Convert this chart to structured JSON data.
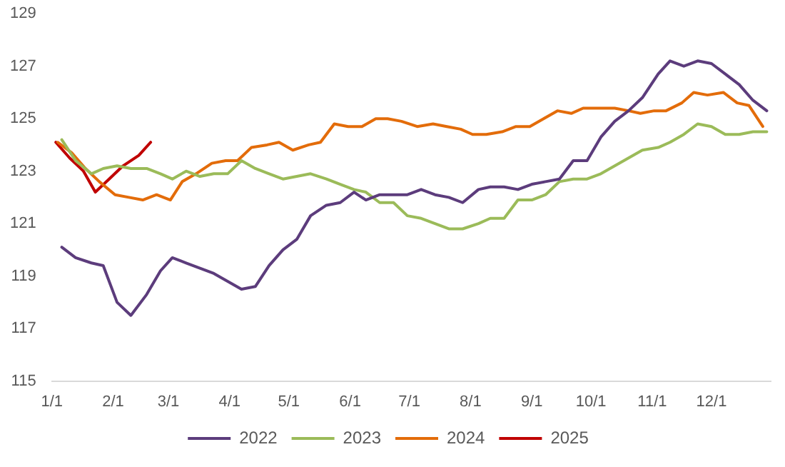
{
  "chart_data": {
    "type": "line",
    "xlim": [
      "--01-01",
      "--12-31"
    ],
    "xticks": [
      {
        "value": "--01-01",
        "label": "1/1"
      },
      {
        "value": "--02-01",
        "label": "2/1"
      },
      {
        "value": "--03-01",
        "label": "3/1"
      },
      {
        "value": "--04-01",
        "label": "4/1"
      },
      {
        "value": "--05-01",
        "label": "5/1"
      },
      {
        "value": "--06-01",
        "label": "6/1"
      },
      {
        "value": "--07-01",
        "label": "7/1"
      },
      {
        "value": "--08-01",
        "label": "8/1"
      },
      {
        "value": "--09-01",
        "label": "9/1"
      },
      {
        "value": "--10-01",
        "label": "10/1"
      },
      {
        "value": "--11-01",
        "label": "11/1"
      },
      {
        "value": "--12-01",
        "label": "12/1"
      }
    ],
    "ylim": [
      115,
      129
    ],
    "yticks": [
      115,
      117,
      119,
      121,
      123,
      125,
      127,
      129
    ],
    "grid": false,
    "legend": "bottom",
    "marker": "none",
    "line_style": "solid",
    "x": [
      "--01-06",
      "--01-13",
      "--01-21",
      "--01-27",
      "--02-03",
      "--02-10",
      "--02-18",
      "--02-25",
      "--03-03",
      "--03-10",
      "--03-17",
      "--03-24",
      "--03-31",
      "--04-07",
      "--04-14",
      "--04-21",
      "--04-28",
      "--05-05",
      "--05-12",
      "--05-20",
      "--05-27",
      "--06-03",
      "--06-09",
      "--06-16",
      "--06-23",
      "--06-30",
      "--07-07",
      "--07-14",
      "--07-21",
      "--07-28",
      "--08-05",
      "--08-11",
      "--08-18",
      "--08-25",
      "--09-01",
      "--09-08",
      "--09-15",
      "--09-22",
      "--09-29",
      "--10-06",
      "--10-13",
      "--10-20",
      "--10-27",
      "--11-04",
      "--11-10",
      "--11-17",
      "--11-24",
      "--12-01",
      "--12-08",
      "--12-15",
      "--12-22",
      "--12-29"
    ],
    "series": [
      {
        "name": "2022",
        "color": "#5c3c7c",
        "values": [
          120.1,
          119.7,
          119.5,
          119.4,
          118.0,
          117.5,
          118.3,
          119.2,
          119.7,
          119.5,
          119.3,
          119.1,
          118.8,
          118.5,
          118.6,
          119.4,
          120.0,
          120.4,
          121.3,
          121.7,
          121.8,
          122.2,
          121.9,
          122.1,
          122.1,
          122.1,
          122.3,
          122.1,
          122.0,
          121.8,
          122.3,
          122.4,
          122.4,
          122.3,
          122.5,
          122.6,
          122.7,
          123.4,
          123.4,
          124.3,
          124.9,
          125.3,
          125.8,
          126.7,
          127.2,
          127.0,
          127.2,
          127.1,
          126.7,
          126.3,
          125.7,
          125.3
        ]
      },
      {
        "name": "2023",
        "color": "#9bbb59",
        "values": [
          124.2,
          123.4,
          122.9,
          123.1,
          123.2,
          123.1,
          123.1,
          122.9,
          122.7,
          123.0,
          122.8,
          122.9,
          122.9,
          123.4,
          123.1,
          122.9,
          122.7,
          122.8,
          122.9,
          122.7,
          122.5,
          122.3,
          122.2,
          121.8,
          121.8,
          121.3,
          121.2,
          121.0,
          120.8,
          120.8,
          121.0,
          121.2,
          121.2,
          121.9,
          121.9,
          122.1,
          122.6,
          122.7,
          122.7,
          122.9,
          123.2,
          123.5,
          123.8,
          123.9,
          124.1,
          124.4,
          124.8,
          124.7,
          124.4,
          124.4,
          124.5,
          124.5
        ]
      },
      {
        "name": "2024",
        "color": "#e36c0a",
        "x": [
          "--01-04",
          "--01-11",
          "--01-18",
          "--01-25",
          "--02-02",
          "--02-09",
          "--02-16",
          "--02-23",
          "--03-02",
          "--03-08",
          "--03-15",
          "--03-23",
          "--03-30",
          "--04-05",
          "--04-12",
          "--04-20",
          "--04-26",
          "--05-03",
          "--05-11",
          "--05-17",
          "--05-24",
          "--05-31",
          "--06-07",
          "--06-14",
          "--06-20",
          "--06-27",
          "--07-05",
          "--07-13",
          "--07-20",
          "--07-27",
          "--08-02",
          "--08-09",
          "--08-17",
          "--08-24",
          "--08-31",
          "--09-07",
          "--09-14",
          "--09-21",
          "--09-27",
          "--10-05",
          "--10-13",
          "--10-20",
          "--10-26",
          "--11-02",
          "--11-08",
          "--11-16",
          "--11-22",
          "--11-29",
          "--12-07",
          "--12-14",
          "--12-20",
          "--12-27"
        ],
        "values": [
          124.1,
          123.7,
          123.1,
          122.6,
          122.1,
          122.0,
          121.9,
          122.1,
          121.9,
          122.6,
          122.9,
          123.3,
          123.4,
          123.4,
          123.9,
          124.0,
          124.1,
          123.8,
          124.0,
          124.1,
          124.8,
          124.7,
          124.7,
          125.0,
          125.0,
          124.9,
          124.7,
          124.8,
          124.7,
          124.6,
          124.4,
          124.4,
          124.5,
          124.7,
          124.7,
          125.0,
          125.3,
          125.2,
          125.4,
          125.4,
          125.4,
          125.3,
          125.2,
          125.3,
          125.3,
          125.6,
          126.0,
          125.9,
          126.0,
          125.6,
          125.5,
          124.7
        ]
      },
      {
        "name": "2025",
        "color": "#c00000",
        "x": [
          "--01-03",
          "--01-10",
          "--01-17",
          "--01-23",
          "--01-30",
          "--02-06",
          "--02-14",
          "--02-20"
        ],
        "values": [
          124.1,
          123.5,
          123.0,
          122.2,
          122.7,
          123.2,
          123.6,
          124.1
        ]
      }
    ]
  }
}
